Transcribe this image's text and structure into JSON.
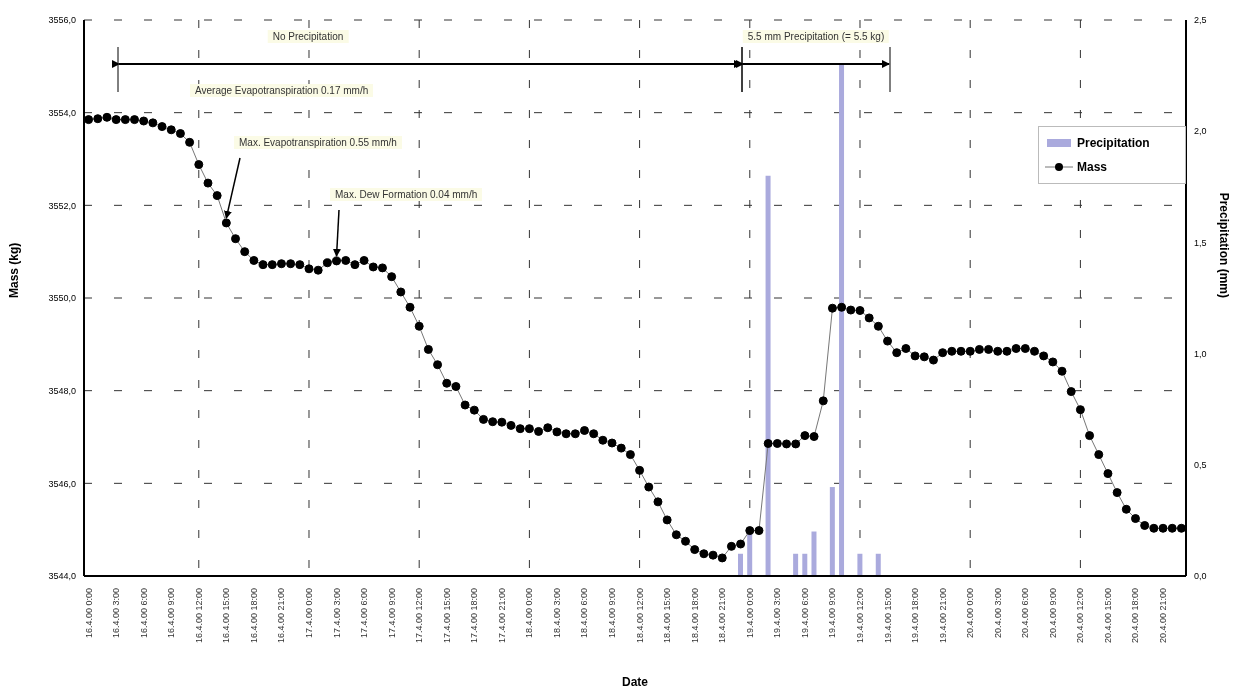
{
  "chart_data": {
    "type": "line",
    "categories": [
      "16.4.00 0:00",
      null,
      null,
      "16.4.00 3:00",
      null,
      null,
      "16.4.00 6:00",
      null,
      null,
      "16.4.00 9:00",
      null,
      null,
      "16.4.00 12:00",
      null,
      null,
      "16.4.00 15:00",
      null,
      null,
      "16.4.00 18:00",
      null,
      null,
      "16.4.00 21:00",
      null,
      null,
      "17.4.00 0:00",
      null,
      null,
      "17.4.00 3:00",
      null,
      null,
      "17.4.00 6:00",
      null,
      null,
      "17.4.00 9:00",
      null,
      null,
      "17.4.00 12:00",
      null,
      null,
      "17.4.00 15:00",
      null,
      null,
      "17.4.00 18:00",
      null,
      null,
      "17.4.00 21:00",
      null,
      null,
      "18.4.00 0:00",
      null,
      null,
      "18.4.00 3:00",
      null,
      null,
      "18.4.00 6:00",
      null,
      null,
      "18.4.00 9:00",
      null,
      null,
      "18.4.00 12:00",
      null,
      null,
      "18.4.00 15:00",
      null,
      null,
      "18.4.00 18:00",
      null,
      null,
      "18.4.00 21:00",
      null,
      null,
      "19.4.00 0:00",
      null,
      null,
      "19.4.00 3:00",
      null,
      null,
      "19.4.00 6:00",
      null,
      null,
      "19.4.00 9:00",
      null,
      null,
      "19.4.00 12:00",
      null,
      null,
      "19.4.00 15:00",
      null,
      null,
      "19.4.00 18:00",
      null,
      null,
      "19.4.00 21:00",
      null,
      null,
      "20.4.00 0:00",
      null,
      null,
      "20.4.00 3:00",
      null,
      null,
      "20.4.00 6:00",
      null,
      null,
      "20.4.00 9:00",
      null,
      null,
      "20.4.00 12:00",
      null,
      null,
      "20.4.00 15:00",
      null,
      null,
      "20.4.00 18:00",
      null,
      null,
      "20.4.00 21:00",
      null,
      null
    ],
    "series": [
      {
        "name": "Precipitation",
        "type": "bar",
        "axis": "y2",
        "color": "#aaaadd",
        "values": [
          null,
          null,
          null,
          null,
          null,
          null,
          null,
          null,
          null,
          null,
          null,
          null,
          null,
          null,
          null,
          null,
          null,
          null,
          null,
          null,
          null,
          null,
          null,
          null,
          null,
          null,
          null,
          null,
          null,
          null,
          null,
          null,
          null,
          null,
          null,
          null,
          null,
          null,
          null,
          null,
          null,
          null,
          null,
          null,
          null,
          null,
          null,
          null,
          null,
          null,
          null,
          null,
          null,
          null,
          null,
          null,
          null,
          null,
          null,
          null,
          null,
          null,
          null,
          null,
          null,
          null,
          null,
          null,
          null,
          null,
          null,
          0.1,
          0.2,
          null,
          1.8,
          null,
          null,
          0.1,
          0.1,
          0.2,
          null,
          0.4,
          2.3,
          null,
          0.1,
          null,
          0.1,
          null,
          null,
          null,
          null,
          null,
          null,
          null,
          null,
          null,
          null,
          null,
          null,
          null,
          null,
          null,
          null,
          null,
          null,
          null,
          null,
          null,
          null,
          null,
          null,
          null,
          null,
          null,
          null,
          null,
          null,
          null,
          null,
          null
        ]
      },
      {
        "name": "Mass",
        "color": "#000000",
        "values": [
          3553.85,
          3553.87,
          3553.9,
          3553.85,
          3553.85,
          3553.85,
          3553.82,
          3553.78,
          3553.7,
          3553.63,
          3553.55,
          3553.36,
          3552.88,
          3552.48,
          3552.21,
          3551.62,
          3551.28,
          3551.0,
          3550.81,
          3550.72,
          3550.72,
          3550.74,
          3550.74,
          3550.72,
          3550.63,
          3550.6,
          3550.76,
          3550.8,
          3550.81,
          3550.72,
          3550.81,
          3550.67,
          3550.65,
          3550.46,
          3550.13,
          3549.8,
          3549.39,
          3548.89,
          3548.56,
          3548.16,
          3548.09,
          3547.69,
          3547.58,
          3547.38,
          3547.33,
          3547.32,
          3547.25,
          3547.18,
          3547.18,
          3547.12,
          3547.2,
          3547.11,
          3547.07,
          3547.07,
          3547.14,
          3547.07,
          3546.93,
          3546.87,
          3546.76,
          3546.62,
          3546.28,
          3545.92,
          3545.6,
          3545.21,
          3544.89,
          3544.75,
          3544.57,
          3544.48,
          3544.45,
          3544.39,
          3544.64,
          3544.69,
          3544.98,
          3544.98,
          3546.86,
          3546.86,
          3546.85,
          3546.85,
          3547.03,
          3547.01,
          3547.78,
          3549.78,
          3549.8,
          3549.74,
          3549.73,
          3549.57,
          3549.39,
          3549.07,
          3548.82,
          3548.91,
          3548.75,
          3548.73,
          3548.66,
          3548.82,
          3548.85,
          3548.85,
          3548.85,
          3548.89,
          3548.89,
          3548.85,
          3548.85,
          3548.91,
          3548.91,
          3548.85,
          3548.75,
          3548.62,
          3548.42,
          3547.98,
          3547.59,
          3547.03,
          3546.62,
          3546.21,
          3545.8,
          3545.44,
          3545.24,
          3545.09,
          3545.03,
          3545.03,
          3545.03,
          3545.03
        ]
      }
    ],
    "xlabel": "Date",
    "ylabel": "Mass (kg)",
    "y2label": "Precipitation (mm)",
    "ylim": [
      3544,
      3556
    ],
    "yticks": [
      {
        "value": 3544,
        "label": "3544,0"
      },
      {
        "value": 3546,
        "label": "3546,0"
      },
      {
        "value": 3548,
        "label": "3548,0"
      },
      {
        "value": 3550,
        "label": "3550,0"
      },
      {
        "value": 3552,
        "label": "3552,0"
      },
      {
        "value": 3554,
        "label": "3554,0"
      },
      {
        "value": 3556,
        "label": "3556,0"
      }
    ],
    "y2lim": [
      0,
      2.5
    ],
    "y2ticks": [
      {
        "value": 0,
        "label": "0,0"
      },
      {
        "value": 0.5,
        "label": "0,5"
      },
      {
        "value": 1,
        "label": "1,0"
      },
      {
        "value": 1.5,
        "label": "1,5"
      },
      {
        "value": 2,
        "label": "2,0"
      },
      {
        "value": 2.5,
        "label": "2,5"
      }
    ],
    "annotations": [
      "No Precipitation",
      "5.5 mm Precipitation (= 5.5 kg)",
      "Average Evapotranspiration 0.17 mm/h",
      {
        "text": "Max. Evapotranspiration 0.55 mm/h",
        "x": "16.4.00 15:00",
        "y": 3551.62
      },
      {
        "text": "Max. Dew Formation 0.04 mm/h",
        "x": "17.4.00 3:00",
        "y": 3550.8
      }
    ],
    "grid": true,
    "legend": "top right",
    "marker": "circle",
    "line_style": "solid"
  }
}
